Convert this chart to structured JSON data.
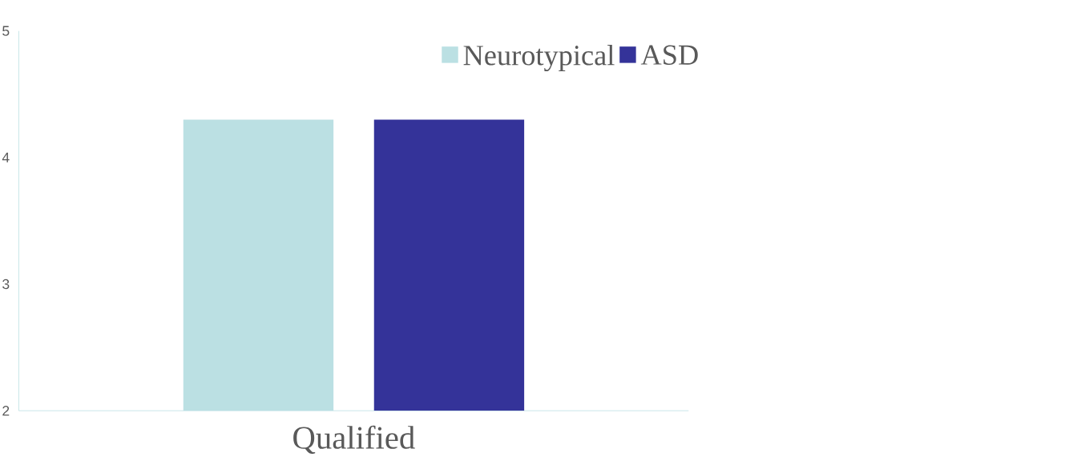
{
  "chart_data": {
    "type": "bar",
    "categories": [
      "Qualified"
    ],
    "series": [
      {
        "name": "Neurotypical",
        "color": "#bbe0e3",
        "values": [
          4.3
        ]
      },
      {
        "name": "ASD",
        "color": "#343399",
        "values": [
          4.3
        ]
      }
    ],
    "ylim": [
      2,
      5
    ],
    "yticks": [
      2,
      3,
      4,
      5
    ],
    "legend": "top right"
  }
}
